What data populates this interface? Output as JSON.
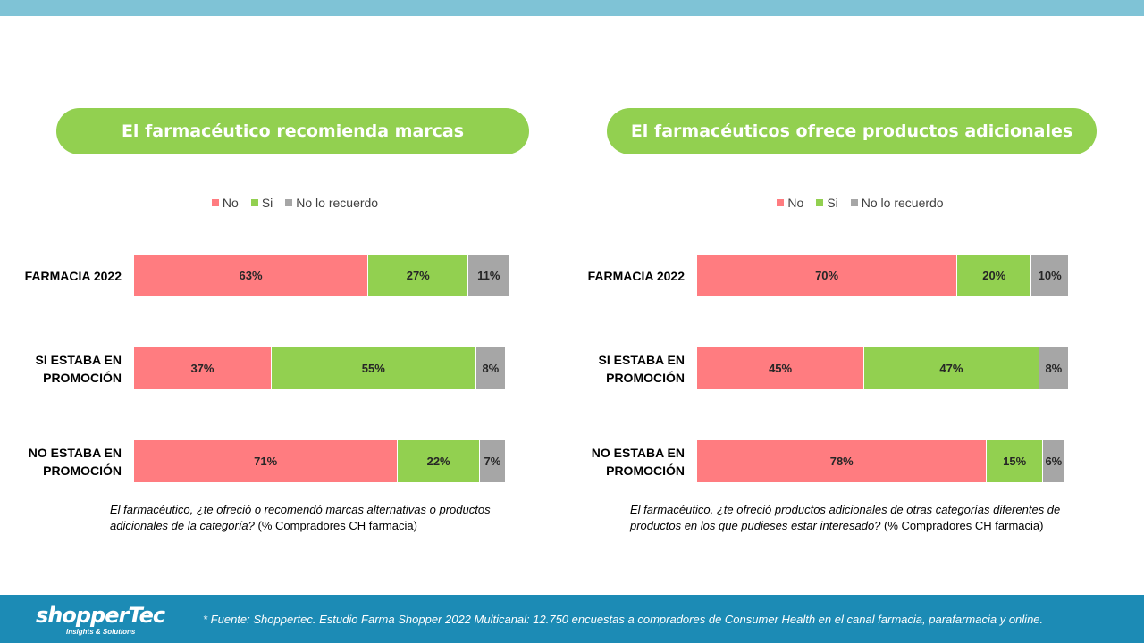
{
  "colors": {
    "no": "#ff7c80",
    "si": "#92d050",
    "no_lo_recuerdo": "#a6a6a6",
    "header_pill": "#92d050",
    "footer": "#1c8bb5",
    "top_bar": "#7fc3d6"
  },
  "chart_data": [
    {
      "type": "bar",
      "orientation": "horizontal",
      "stacked": true,
      "title": "El farmacéutico recomienda marcas",
      "legend": [
        "No",
        "Si",
        "No lo recuerdo"
      ],
      "legend_position": "top",
      "categories": [
        [
          "FARMACIA 2022"
        ],
        [
          "SI ESTABA EN",
          "PROMOCIÓN"
        ],
        [
          "NO ESTABA EN",
          "PROMOCIÓN"
        ]
      ],
      "series": [
        {
          "name": "No",
          "values": [
            63,
            37,
            71
          ],
          "labels": [
            "63%",
            "37%",
            "71%"
          ]
        },
        {
          "name": "Si",
          "values": [
            27,
            55,
            22
          ],
          "labels": [
            "27%",
            "55%",
            "22%"
          ]
        },
        {
          "name": "No lo recuerdo",
          "values": [
            11,
            8,
            7
          ],
          "labels": [
            "11%",
            "8%",
            "7%"
          ]
        }
      ],
      "note": {
        "question": "El farmacéutico, ¿te ofreció o recomendó marcas alternativas o productos adicionales de la categoría?",
        "base": " (% Compradores CH farmacia)"
      }
    },
    {
      "type": "bar",
      "orientation": "horizontal",
      "stacked": true,
      "title": "El farmacéuticos ofrece productos adicionales",
      "legend": [
        "No",
        "Si",
        "No lo recuerdo"
      ],
      "legend_position": "top",
      "categories": [
        [
          "FARMACIA 2022"
        ],
        [
          "SI ESTABA EN",
          "PROMOCIÓN"
        ],
        [
          "NO ESTABA EN",
          "PROMOCIÓN"
        ]
      ],
      "series": [
        {
          "name": "No",
          "values": [
            70,
            45,
            78
          ],
          "labels": [
            "70%",
            "45%",
            "78%"
          ]
        },
        {
          "name": "Si",
          "values": [
            20,
            47,
            15
          ],
          "labels": [
            "20%",
            "47%",
            "15%"
          ]
        },
        {
          "name": "No lo recuerdo",
          "values": [
            10,
            8,
            6
          ],
          "labels": [
            "10%",
            "8%",
            "6%"
          ]
        }
      ],
      "note": {
        "question": "El farmacéutico, ¿te ofreció productos adicionales de otras categorías diferentes de productos en los que pudieses estar interesado?",
        "base": " (% Compradores CH farmacia)"
      }
    }
  ],
  "footer": {
    "logo_text": "shopperTec",
    "logo_tagline": "Insights & Solutions",
    "source": "* Fuente: Shoppertec. Estudio Farma Shopper 2022 Multicanal: 12.750 encuestas a compradores de Consumer Health en el canal farmacia, parafarmacia y online."
  }
}
